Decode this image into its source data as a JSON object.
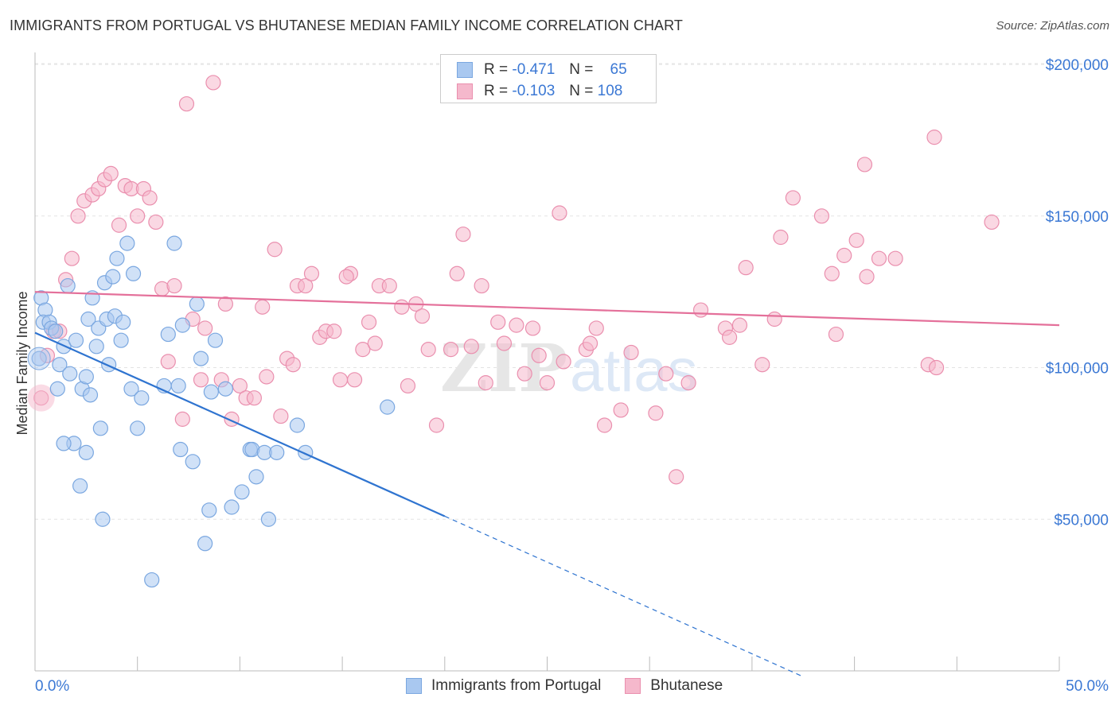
{
  "title": "IMMIGRANTS FROM PORTUGAL VS BHUTANESE MEDIAN FAMILY INCOME CORRELATION CHART",
  "source": "Source: ZipAtlas.com",
  "watermark": {
    "zip": "ZIP",
    "atlas": "atlas"
  },
  "legend": {
    "rows": [
      {
        "r_label": "R =",
        "r_value": "-0.471",
        "n_label": "N =",
        "n_value": "65"
      },
      {
        "r_label": "R =",
        "r_value": "-0.103",
        "n_label": "N =",
        "n_value": "108"
      }
    ]
  },
  "colors": {
    "portugal_fill": "#a9c8f0",
    "portugal_stroke": "#7aa7e0",
    "portugal_line": "#2f74d0",
    "bhutan_fill": "#f5b8cc",
    "bhutan_stroke": "#ea8fae",
    "bhutan_line": "#e4709a",
    "tick_text": "#3b78d4",
    "grid": "#e3e3e3"
  },
  "chart_data": {
    "type": "scatter",
    "title": "IMMIGRANTS FROM PORTUGAL VS BHUTANESE MEDIAN FAMILY INCOME CORRELATION CHART",
    "xlabel": "",
    "ylabel": "Median Family Income",
    "xlim": [
      0,
      50
    ],
    "ylim": [
      0,
      205000
    ],
    "x_tick_labels": [
      "0.0%",
      "50.0%"
    ],
    "y_ticks": [
      50000,
      100000,
      150000,
      200000
    ],
    "y_tick_labels": [
      "$50,000",
      "$100,000",
      "$150,000",
      "$200,000"
    ],
    "grid": true,
    "legend_position": "bottom",
    "series": [
      {
        "name": "Immigrants from Portugal",
        "r": -0.471,
        "n": 65,
        "trend": {
          "x0": 0,
          "y0": 111500,
          "x1": 20,
          "y1": 51000,
          "dashed_to_x": 37.5
        },
        "points": [
          [
            0.2,
            103000
          ],
          [
            0.3,
            123000
          ],
          [
            0.5,
            119000
          ],
          [
            0.4,
            115000
          ],
          [
            0.7,
            115000
          ],
          [
            0.8,
            113000
          ],
          [
            1.0,
            112000
          ],
          [
            1.1,
            93000
          ],
          [
            1.2,
            101000
          ],
          [
            1.4,
            107000
          ],
          [
            1.6,
            127000
          ],
          [
            1.7,
            98000
          ],
          [
            1.9,
            75000
          ],
          [
            2.0,
            109000
          ],
          [
            2.2,
            61000
          ],
          [
            2.3,
            93000
          ],
          [
            2.5,
            97000
          ],
          [
            2.6,
            116000
          ],
          [
            2.7,
            91000
          ],
          [
            2.8,
            123000
          ],
          [
            3.0,
            107000
          ],
          [
            3.1,
            113000
          ],
          [
            3.2,
            80000
          ],
          [
            3.3,
            50000
          ],
          [
            3.4,
            128000
          ],
          [
            3.5,
            116000
          ],
          [
            3.6,
            101000
          ],
          [
            3.8,
            130000
          ],
          [
            3.9,
            117000
          ],
          [
            4.0,
            136000
          ],
          [
            4.2,
            109000
          ],
          [
            4.3,
            115000
          ],
          [
            4.5,
            141000
          ],
          [
            4.7,
            93000
          ],
          [
            4.8,
            131000
          ],
          [
            5.0,
            80000
          ],
          [
            5.2,
            90000
          ],
          [
            5.7,
            30000
          ],
          [
            6.3,
            94000
          ],
          [
            6.5,
            111000
          ],
          [
            6.8,
            141000
          ],
          [
            7.0,
            94000
          ],
          [
            7.1,
            73000
          ],
          [
            7.2,
            114000
          ],
          [
            7.7,
            69000
          ],
          [
            7.9,
            121000
          ],
          [
            8.1,
            103000
          ],
          [
            8.3,
            42000
          ],
          [
            8.5,
            53000
          ],
          [
            8.6,
            92000
          ],
          [
            8.8,
            109000
          ],
          [
            9.3,
            93000
          ],
          [
            9.6,
            54000
          ],
          [
            10.1,
            59000
          ],
          [
            10.5,
            73000
          ],
          [
            10.6,
            73000
          ],
          [
            10.8,
            64000
          ],
          [
            11.2,
            72000
          ],
          [
            11.4,
            50000
          ],
          [
            11.8,
            72000
          ],
          [
            12.8,
            81000
          ],
          [
            13.2,
            72000
          ],
          [
            17.2,
            87000
          ],
          [
            1.4,
            75000
          ],
          [
            2.5,
            72000
          ]
        ]
      },
      {
        "name": "Bhutanese",
        "r": -0.103,
        "n": 108,
        "trend": {
          "x0": 0,
          "y0": 125000,
          "x1": 50,
          "y1": 114000
        },
        "points": [
          [
            0.3,
            90000
          ],
          [
            0.6,
            104000
          ],
          [
            0.9,
            112000
          ],
          [
            1.2,
            112000
          ],
          [
            1.5,
            129000
          ],
          [
            1.8,
            136000
          ],
          [
            2.1,
            150000
          ],
          [
            2.4,
            155000
          ],
          [
            2.8,
            157000
          ],
          [
            3.1,
            159000
          ],
          [
            3.4,
            162000
          ],
          [
            3.7,
            164000
          ],
          [
            4.1,
            147000
          ],
          [
            4.4,
            160000
          ],
          [
            4.7,
            159000
          ],
          [
            5.0,
            150000
          ],
          [
            5.3,
            159000
          ],
          [
            5.6,
            156000
          ],
          [
            5.9,
            148000
          ],
          [
            6.2,
            126000
          ],
          [
            6.5,
            102000
          ],
          [
            6.8,
            127000
          ],
          [
            7.2,
            83000
          ],
          [
            7.4,
            187000
          ],
          [
            7.7,
            116000
          ],
          [
            8.1,
            96000
          ],
          [
            8.3,
            113000
          ],
          [
            8.7,
            194000
          ],
          [
            9.1,
            96000
          ],
          [
            9.3,
            121000
          ],
          [
            9.6,
            83000
          ],
          [
            10.0,
            94000
          ],
          [
            10.3,
            90000
          ],
          [
            10.7,
            90000
          ],
          [
            11.1,
            120000
          ],
          [
            11.3,
            97000
          ],
          [
            11.7,
            139000
          ],
          [
            12.0,
            84000
          ],
          [
            12.3,
            103000
          ],
          [
            12.6,
            101000
          ],
          [
            12.8,
            127000
          ],
          [
            13.2,
            127000
          ],
          [
            13.5,
            131000
          ],
          [
            13.9,
            110000
          ],
          [
            14.2,
            112000
          ],
          [
            14.6,
            112000
          ],
          [
            14.9,
            96000
          ],
          [
            15.4,
            131000
          ],
          [
            15.6,
            96000
          ],
          [
            16.0,
            106000
          ],
          [
            16.3,
            115000
          ],
          [
            16.6,
            108000
          ],
          [
            16.8,
            127000
          ],
          [
            17.3,
            127000
          ],
          [
            17.9,
            120000
          ],
          [
            18.2,
            94000
          ],
          [
            18.6,
            121000
          ],
          [
            18.9,
            117000
          ],
          [
            19.2,
            106000
          ],
          [
            19.6,
            81000
          ],
          [
            20.3,
            106000
          ],
          [
            20.6,
            131000
          ],
          [
            20.9,
            144000
          ],
          [
            21.3,
            107000
          ],
          [
            21.8,
            127000
          ],
          [
            22.0,
            95000
          ],
          [
            22.6,
            115000
          ],
          [
            22.9,
            108000
          ],
          [
            23.5,
            114000
          ],
          [
            23.9,
            98000
          ],
          [
            24.3,
            113000
          ],
          [
            24.6,
            104000
          ],
          [
            25.0,
            95000
          ],
          [
            25.6,
            151000
          ],
          [
            25.8,
            102000
          ],
          [
            26.9,
            106000
          ],
          [
            27.1,
            108000
          ],
          [
            27.4,
            113000
          ],
          [
            27.8,
            81000
          ],
          [
            28.6,
            86000
          ],
          [
            29.1,
            105000
          ],
          [
            30.3,
            85000
          ],
          [
            30.8,
            98000
          ],
          [
            31.3,
            64000
          ],
          [
            31.9,
            95000
          ],
          [
            32.5,
            119000
          ],
          [
            33.7,
            113000
          ],
          [
            33.9,
            110000
          ],
          [
            34.4,
            114000
          ],
          [
            34.7,
            133000
          ],
          [
            35.5,
            101000
          ],
          [
            36.1,
            116000
          ],
          [
            36.4,
            143000
          ],
          [
            37.0,
            156000
          ],
          [
            38.4,
            150000
          ],
          [
            38.9,
            131000
          ],
          [
            39.1,
            111000
          ],
          [
            39.5,
            137000
          ],
          [
            40.1,
            142000
          ],
          [
            40.5,
            167000
          ],
          [
            40.6,
            130000
          ],
          [
            41.2,
            136000
          ],
          [
            42.0,
            136000
          ],
          [
            43.6,
            101000
          ],
          [
            43.9,
            176000
          ],
          [
            44.0,
            100000
          ],
          [
            46.7,
            148000
          ],
          [
            15.2,
            130000
          ]
        ]
      }
    ]
  }
}
